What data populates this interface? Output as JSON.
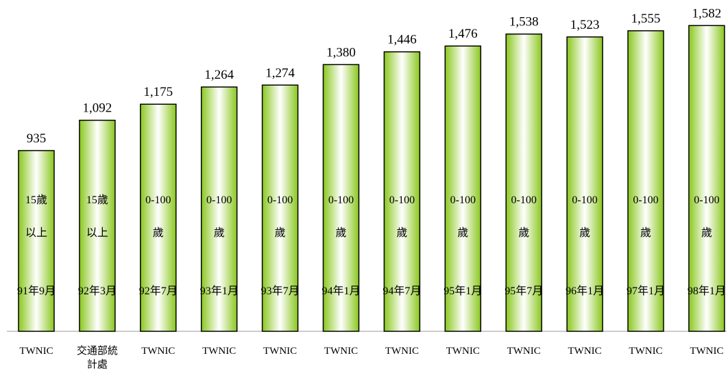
{
  "chart_data": {
    "type": "bar",
    "title": "",
    "xlabel": "",
    "ylabel": "",
    "ylim": [
      0,
      1650
    ],
    "grid": false,
    "colors": {
      "bar_edge": "#8ac71e",
      "bar_center": "#ffffff",
      "bar_outline": "#000000"
    },
    "bars": [
      {
        "value": 935,
        "value_label": "935",
        "range_line1": "15歲",
        "range_line2": "以上",
        "date": "91年9月",
        "source": [
          "TWNIC"
        ]
      },
      {
        "value": 1092,
        "value_label": "1,092",
        "range_line1": "15歲",
        "range_line2": "以上",
        "date": "92年3月",
        "source": [
          "交通部統",
          "計處"
        ]
      },
      {
        "value": 1175,
        "value_label": "1,175",
        "range_line1": "0-100",
        "range_line2": "歲",
        "date": "92年7月",
        "source": [
          "TWNIC"
        ]
      },
      {
        "value": 1264,
        "value_label": "1,264",
        "range_line1": "0-100",
        "range_line2": "歲",
        "date": "93年1月",
        "source": [
          "TWNIC"
        ]
      },
      {
        "value": 1274,
        "value_label": "1,274",
        "range_line1": "0-100",
        "range_line2": "歲",
        "date": "93年7月",
        "source": [
          "TWNIC"
        ]
      },
      {
        "value": 1380,
        "value_label": "1,380",
        "range_line1": "0-100",
        "range_line2": "歲",
        "date": "94年1月",
        "source": [
          "TWNIC"
        ]
      },
      {
        "value": 1446,
        "value_label": "1,446",
        "range_line1": "0-100",
        "range_line2": "歲",
        "date": "94年7月",
        "source": [
          "TWNIC"
        ]
      },
      {
        "value": 1476,
        "value_label": "1,476",
        "range_line1": "0-100",
        "range_line2": "歲",
        "date": "95年1月",
        "source": [
          "TWNIC"
        ]
      },
      {
        "value": 1538,
        "value_label": "1,538",
        "range_line1": "0-100",
        "range_line2": "歲",
        "date": "95年7月",
        "source": [
          "TWNIC"
        ]
      },
      {
        "value": 1523,
        "value_label": "1,523",
        "range_line1": "0-100",
        "range_line2": "歲",
        "date": "96年1月",
        "source": [
          "TWNIC"
        ]
      },
      {
        "value": 1555,
        "value_label": "1,555",
        "range_line1": "0-100",
        "range_line2": "歲",
        "date": "97年1月",
        "source": [
          "TWNIC"
        ]
      },
      {
        "value": 1582,
        "value_label": "1,582",
        "range_line1": "0-100",
        "range_line2": "歲",
        "date": "98年1月",
        "source": [
          "TWNIC"
        ]
      }
    ]
  }
}
